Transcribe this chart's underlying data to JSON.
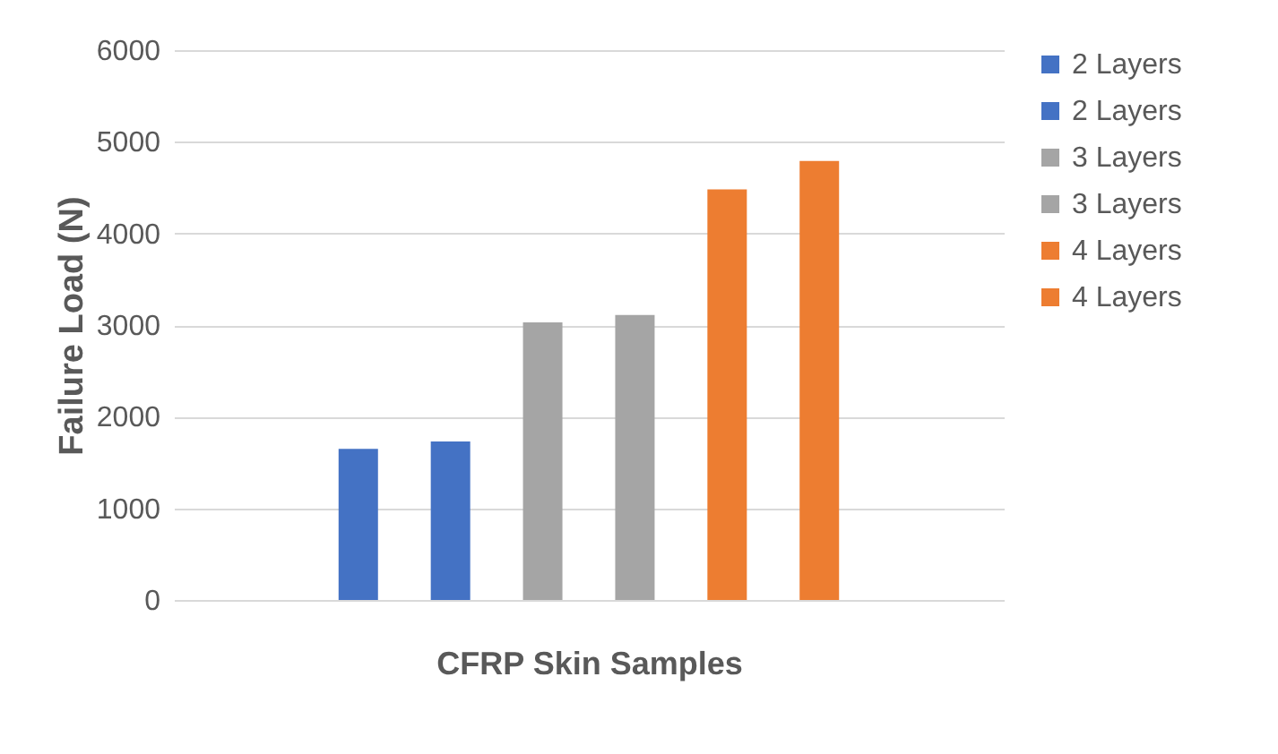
{
  "chart_data": {
    "type": "bar",
    "xlabel": "CFRP Skin Samples",
    "ylabel": "Failure Load (N)",
    "categories": [
      null
    ],
    "series": [
      {
        "name": "2 Layers",
        "color": "#4472c4",
        "values": [
          1650
        ]
      },
      {
        "name": "2 Layers",
        "color": "#4472c4",
        "values": [
          1730
        ]
      },
      {
        "name": "3 Layers",
        "color": "#a5a5a5",
        "values": [
          3030
        ]
      },
      {
        "name": "3 Layers",
        "color": "#a5a5a5",
        "values": [
          3110
        ]
      },
      {
        "name": "4 Layers",
        "color": "#ed7d31",
        "values": [
          4480
        ]
      },
      {
        "name": "4 Layers",
        "color": "#ed7d31",
        "values": [
          4790
        ]
      }
    ],
    "ylim": [
      0,
      6000
    ],
    "yticks": [
      0,
      1000,
      2000,
      3000,
      4000,
      5000,
      6000
    ],
    "grid": "y",
    "legend": "right"
  }
}
